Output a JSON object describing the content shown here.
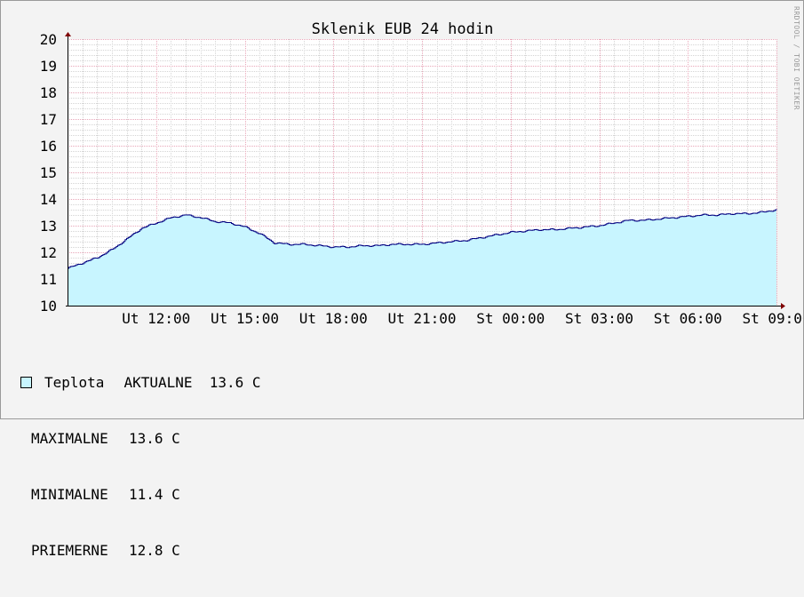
{
  "chart_data": {
    "type": "area",
    "title": "Sklenik EUB 24 hodin",
    "watermark": "RRDTOOL / TOBI OETIKER",
    "ylim": [
      10,
      20
    ],
    "yticks": [
      10,
      11,
      12,
      13,
      14,
      15,
      16,
      17,
      18,
      19,
      20
    ],
    "xlim": [
      "Ut 09:00",
      "St 09:00"
    ],
    "xticks": [
      {
        "label": "Ut 12:00",
        "h": 3
      },
      {
        "label": "Ut 15:00",
        "h": 6
      },
      {
        "label": "Ut 18:00",
        "h": 9
      },
      {
        "label": "Ut 21:00",
        "h": 12
      },
      {
        "label": "St 00:00",
        "h": 15
      },
      {
        "label": "St 03:00",
        "h": 18
      },
      {
        "label": "St 06:00",
        "h": 21
      },
      {
        "label": "St 09:00",
        "h": 24
      }
    ],
    "colors": {
      "fill": "#c8f5ff",
      "line": "#000080",
      "major_grid": "#e8a6b8",
      "minor_grid": "#d4d4d4",
      "background": "#ffffff",
      "page": "#f3f3f3"
    },
    "series": [
      {
        "name": "Teplota",
        "x_hours": [
          0,
          0.5,
          1.0,
          1.5,
          2.0,
          2.5,
          3.0,
          3.5,
          4.0,
          4.5,
          5.0,
          5.5,
          6.0,
          6.5,
          7.0,
          7.5,
          8.0,
          8.5,
          9.0,
          9.5,
          10.0,
          10.5,
          11.0,
          11.5,
          12.0,
          12.5,
          13.0,
          13.5,
          14.0,
          14.5,
          15.0,
          15.5,
          16.0,
          16.5,
          17.0,
          17.5,
          18.0,
          18.5,
          19.0,
          19.5,
          20.0,
          20.5,
          21.0,
          21.5,
          22.0,
          22.5,
          23.0,
          23.5,
          24.0
        ],
        "values": [
          11.4,
          11.6,
          11.8,
          12.1,
          12.5,
          12.9,
          13.1,
          13.3,
          13.4,
          13.3,
          13.15,
          13.1,
          12.95,
          12.7,
          12.35,
          12.3,
          12.3,
          12.25,
          12.2,
          12.2,
          12.25,
          12.25,
          12.3,
          12.3,
          12.3,
          12.35,
          12.4,
          12.45,
          12.55,
          12.65,
          12.75,
          12.8,
          12.85,
          12.85,
          12.9,
          12.95,
          13.0,
          13.1,
          13.2,
          13.2,
          13.25,
          13.3,
          13.35,
          13.4,
          13.4,
          13.45,
          13.45,
          13.5,
          13.6
        ]
      }
    ]
  },
  "legend": {
    "series_label": "Teplota",
    "current_label": "AKTUALNE",
    "current_value": "13.6 C",
    "stats": [
      {
        "label": "MAXIMALNE",
        "value": "13.6 C"
      },
      {
        "label": "MINIMALNE",
        "value": "11.4 C"
      },
      {
        "label": "PRIEMERNE",
        "value": "12.8 C"
      }
    ]
  }
}
